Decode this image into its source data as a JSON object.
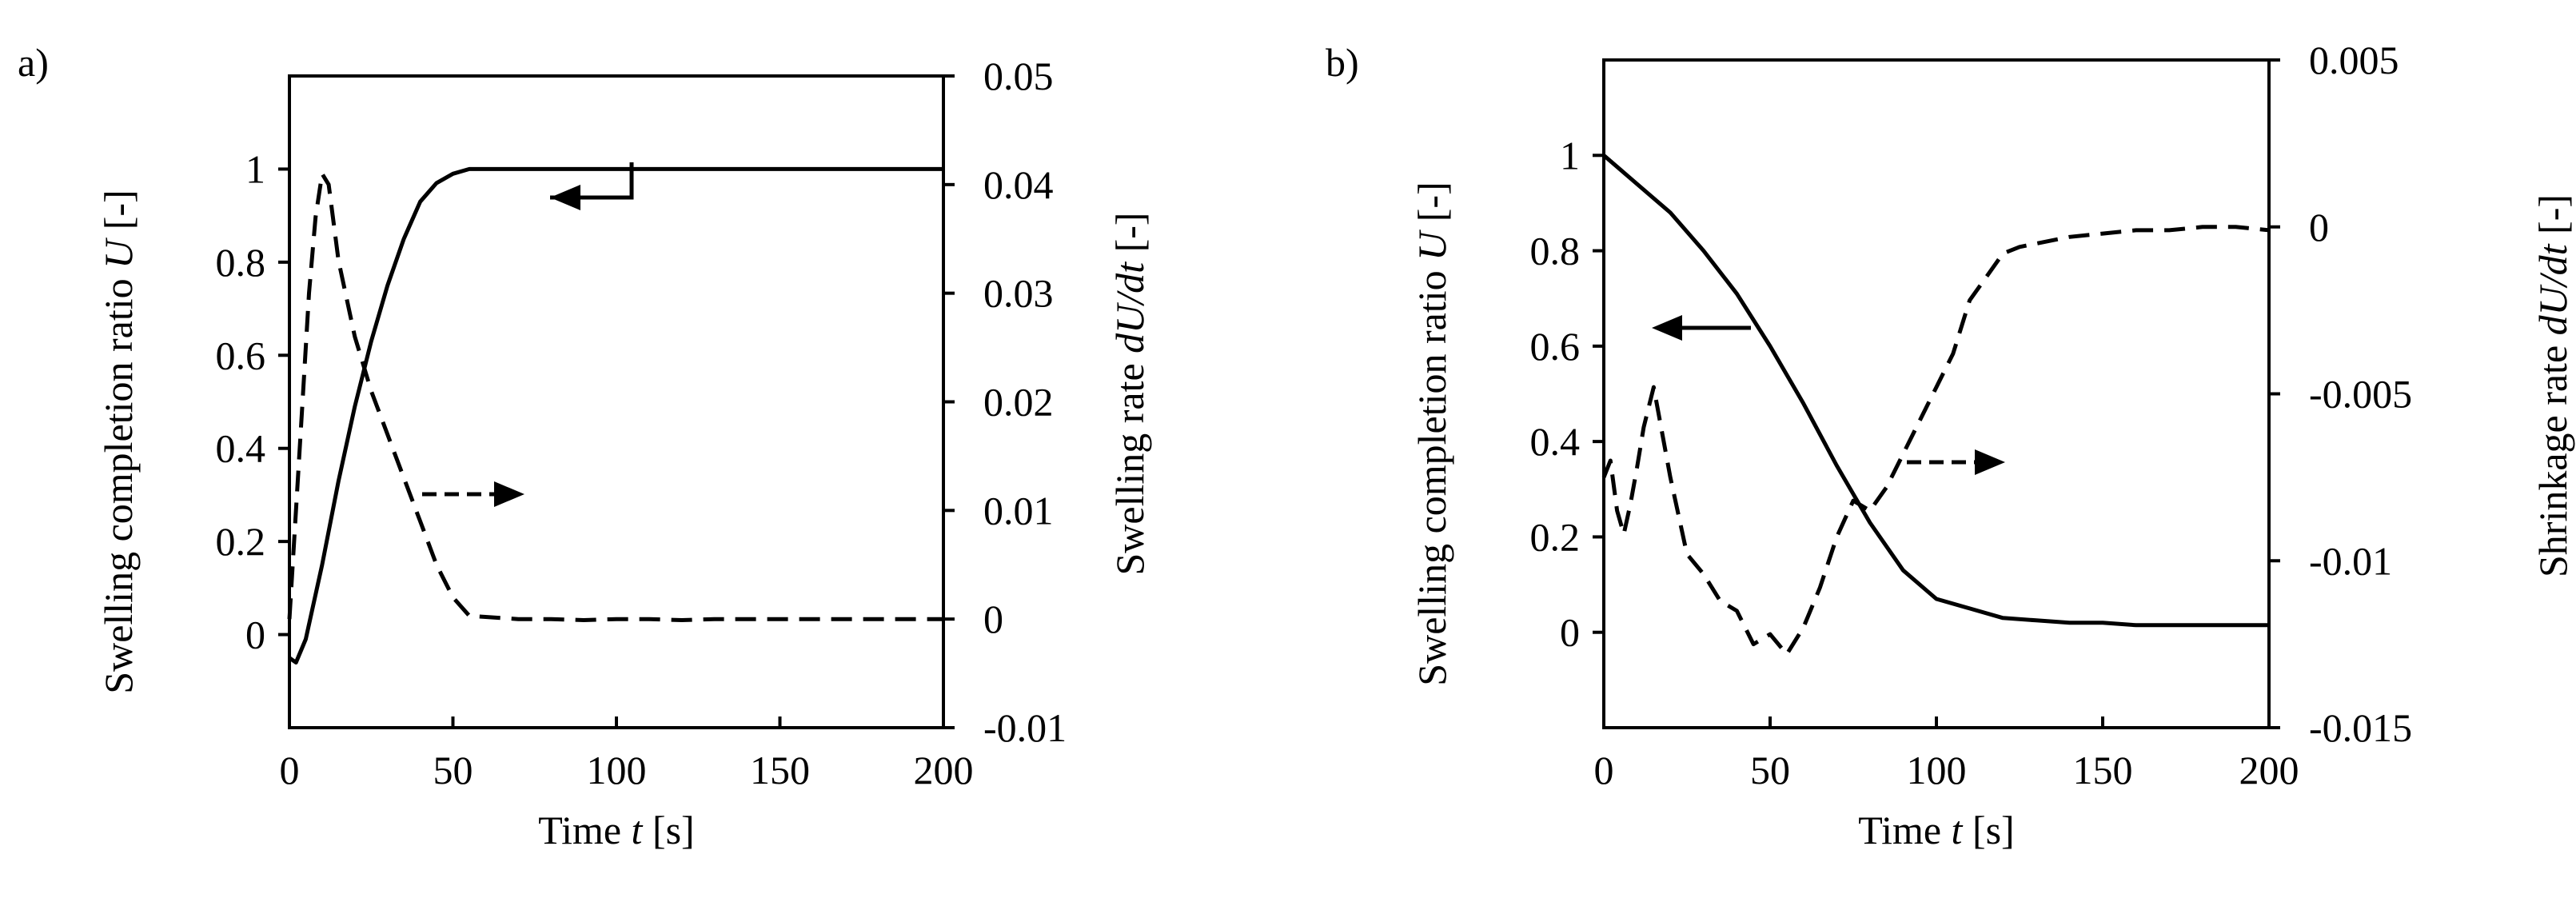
{
  "chart_data": [
    {
      "type": "line",
      "panel_label": "a)",
      "xlabel": {
        "text": "Time",
        "var": "t",
        "unit": "[s]"
      },
      "ylabel_left": {
        "text": "Swelling completion ratio",
        "var": "U",
        "unit": "[-]"
      },
      "ylabel_right": {
        "text": "Swelling rate",
        "var": "dU/dt",
        "unit": "[-]"
      },
      "xlim": [
        0,
        200
      ],
      "ylim_left": [
        -0.2,
        1.2
      ],
      "ylim_right": [
        -0.01,
        0.05
      ],
      "xticks": [
        "0",
        "50",
        "100",
        "150",
        "200"
      ],
      "yticks_left": [
        "0",
        "0.2",
        "0.4",
        "0.6",
        "0.8",
        "1"
      ],
      "yticks_right": [
        "-0.01",
        "0",
        "0.01",
        "0.02",
        "0.03",
        "0.04",
        "0.05"
      ],
      "series": [
        {
          "axis": "left",
          "style": "solid",
          "x": [
            0,
            2,
            5,
            10,
            15,
            20,
            25,
            30,
            35,
            40,
            45,
            50,
            55,
            60,
            70,
            80,
            90,
            100,
            110,
            120,
            130,
            140,
            150,
            160,
            170,
            180,
            190,
            200
          ],
          "y": [
            -0.05,
            -0.06,
            -0.01,
            0.15,
            0.33,
            0.49,
            0.63,
            0.75,
            0.85,
            0.93,
            0.97,
            0.99,
            1.0,
            1.0,
            1.0,
            1.0,
            1.0,
            1.0,
            1.0,
            1.0,
            1.0,
            1.0,
            1.0,
            1.0,
            1.0,
            1.0,
            1.0,
            1.0
          ]
        },
        {
          "axis": "right",
          "style": "dashed",
          "x": [
            0,
            2,
            4,
            6,
            8,
            10,
            12,
            15,
            20,
            25,
            30,
            35,
            40,
            45,
            50,
            55,
            60,
            70,
            80,
            90,
            100,
            110,
            120,
            130,
            140,
            150,
            160,
            170,
            180,
            190,
            200
          ],
          "y": [
            0.0,
            0.01,
            0.02,
            0.03,
            0.037,
            0.041,
            0.04,
            0.033,
            0.026,
            0.021,
            0.017,
            0.013,
            0.009,
            0.005,
            0.002,
            0.0003,
            0.0002,
            0.0,
            0.0,
            -0.0001,
            0.0,
            0.0,
            -0.0001,
            0.0,
            0.0,
            0.0,
            0.0,
            0.0,
            0.0,
            0.0,
            0.0
          ]
        }
      ]
    },
    {
      "type": "line",
      "panel_label": "b)",
      "xlabel": {
        "text": "Time",
        "var": "t",
        "unit": "[s]"
      },
      "ylabel_left": {
        "text": "Swelling completion ratio",
        "var": "U",
        "unit": "[-]"
      },
      "ylabel_right": {
        "text": "Shrinkage rate",
        "var": "dU/dt",
        "unit": "[-]"
      },
      "xlim": [
        0,
        200
      ],
      "ylim_left": [
        -0.2,
        1.2
      ],
      "ylim_right": [
        -0.015,
        0.005
      ],
      "xticks": [
        "0",
        "50",
        "100",
        "150",
        "200"
      ],
      "yticks_left": [
        "0",
        "0.2",
        "0.4",
        "0.6",
        "0.8",
        "1"
      ],
      "yticks_right": [
        "-0.015",
        "-0.01",
        "-0.005",
        "0",
        "0.005"
      ],
      "series": [
        {
          "axis": "left",
          "style": "solid",
          "x": [
            0,
            5,
            10,
            20,
            30,
            40,
            50,
            60,
            70,
            80,
            90,
            100,
            110,
            120,
            130,
            140,
            150,
            160,
            170,
            180,
            190,
            200
          ],
          "y": [
            1.0,
            0.97,
            0.94,
            0.88,
            0.8,
            0.71,
            0.6,
            0.48,
            0.35,
            0.23,
            0.13,
            0.07,
            0.05,
            0.03,
            0.025,
            0.02,
            0.02,
            0.015,
            0.015,
            0.015,
            0.015,
            0.015
          ],
          "arrow": "left"
        },
        {
          "axis": "right",
          "style": "dashed",
          "x": [
            0,
            2,
            4,
            6,
            8,
            10,
            12,
            15,
            20,
            25,
            30,
            35,
            40,
            45,
            50,
            55,
            60,
            65,
            70,
            75,
            80,
            85,
            90,
            95,
            100,
            105,
            110,
            115,
            120,
            125,
            130,
            140,
            150,
            160,
            170,
            180,
            190,
            200
          ],
          "y": [
            -0.0075,
            -0.007,
            -0.0085,
            -0.0092,
            -0.0083,
            -0.0072,
            -0.006,
            -0.0048,
            -0.0075,
            -0.0098,
            -0.0104,
            -0.0112,
            -0.0115,
            -0.0125,
            -0.0122,
            -0.0128,
            -0.012,
            -0.0108,
            -0.0093,
            -0.0082,
            -0.0085,
            -0.0078,
            -0.0068,
            -0.0058,
            -0.0048,
            -0.0038,
            -0.0022,
            -0.0015,
            -0.0008,
            -0.0006,
            -0.0005,
            -0.0003,
            -0.0002,
            -0.0001,
            -0.0001,
            0.0,
            0.0,
            -0.0001
          ]
        }
      ]
    }
  ]
}
